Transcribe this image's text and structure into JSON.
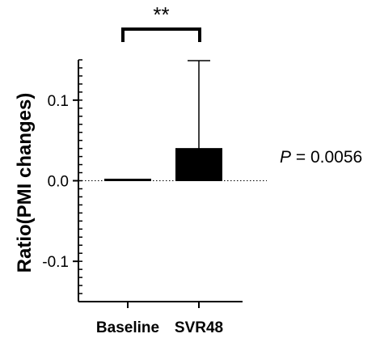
{
  "chart_data": {
    "type": "bar",
    "categories": [
      "Baseline",
      "SVR48"
    ],
    "values": [
      0.002,
      0.04
    ],
    "error_upper": [
      0,
      0.109
    ],
    "ylabel": "Ratio(PMI changes)",
    "xlabel": "",
    "ylim": [
      -0.15,
      0.15
    ],
    "yticks": [
      0.1,
      0.0,
      -0.1
    ],
    "ytick_labels": [
      "0.1",
      "0.0",
      "-0.1"
    ],
    "reference_line": 0.0,
    "bar_colors": [
      "#000000",
      "#000000"
    ],
    "significance": {
      "label": "**",
      "between": [
        "Baseline",
        "SVR48"
      ]
    },
    "annotation": {
      "italic": "P",
      "rest": " = 0.0056"
    }
  }
}
